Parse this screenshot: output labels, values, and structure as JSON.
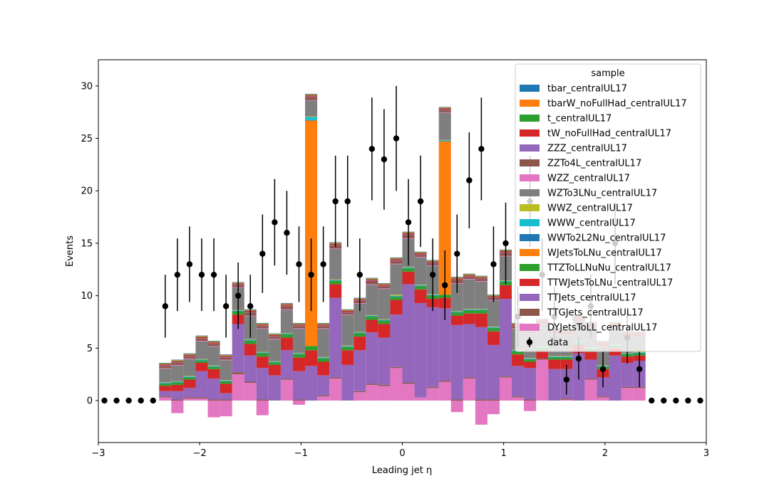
{
  "chart_data": {
    "type": "bar",
    "xlabel": "Leading jet  η",
    "ylabel": "Events",
    "xlim": [
      -3,
      3
    ],
    "ylim": [
      -4,
      32.5
    ],
    "xticks": [
      -3,
      -2,
      -1,
      0,
      1,
      2,
      3
    ],
    "xtick_labels": [
      "−3",
      "−2",
      "−1",
      "0",
      "1",
      "2",
      "3"
    ],
    "yticks": [
      0,
      5,
      10,
      15,
      20,
      25,
      30
    ],
    "ytick_labels": [
      "0",
      "5",
      "10",
      "15",
      "20",
      "25",
      "30"
    ],
    "bin_edges": [
      -3.0,
      -2.88,
      -2.76,
      -2.64,
      -2.52,
      -2.4,
      -2.28,
      -2.16,
      -2.04,
      -1.92,
      -1.8,
      -1.68,
      -1.56,
      -1.44,
      -1.32,
      -1.2,
      -1.08,
      -0.96,
      -0.84,
      -0.72,
      -0.6,
      -0.48,
      -0.36,
      -0.24,
      -0.12,
      0.0,
      0.12,
      0.24,
      0.36,
      0.48,
      0.6,
      0.72,
      0.84,
      0.96,
      1.08,
      1.2,
      1.32,
      1.44,
      1.56,
      1.68,
      1.8,
      1.92,
      2.04,
      2.16,
      2.28,
      2.4,
      2.52,
      2.64,
      2.76,
      2.88,
      3.0
    ],
    "legend_title": "sample",
    "legend_position": "upper right",
    "series": [
      {
        "name": "DYJetsToLL_centralUL17",
        "color": "#e377c2",
        "values": [
          0,
          0,
          0,
          0,
          0,
          0.3,
          -1.2,
          0.2,
          0.2,
          -1.6,
          -1.5,
          2.5,
          1.7,
          -1.4,
          0,
          2.0,
          -0.4,
          0,
          0.4,
          2.1,
          0,
          0.8,
          1.5,
          1.4,
          3.1,
          1.6,
          0.3,
          1.2,
          1.8,
          -1.1,
          2.1,
          -2.3,
          -1.3,
          2.2,
          0.3,
          -1.0,
          3.9,
          0,
          0.1,
          0,
          2.0,
          0.3,
          0,
          1.2,
          1.2,
          0,
          0,
          0,
          0,
          0
        ]
      },
      {
        "name": "TTGJets_centralUL17",
        "color": "#8c564b",
        "values": [
          0,
          0,
          0,
          0,
          0,
          0.1,
          0.1,
          0.1,
          0.1,
          0.1,
          0.1,
          0.2,
          0.1,
          0.1,
          0,
          0.1,
          0.1,
          0,
          0.1,
          0.1,
          0,
          0.1,
          0.1,
          0.1,
          0.1,
          0.1,
          0,
          0.1,
          0.1,
          0.1,
          0.1,
          0.1,
          0.1,
          0.1,
          0.1,
          0.1,
          0.1,
          0,
          0.1,
          0,
          0.1,
          0.1,
          0,
          0.1,
          0.1,
          0,
          0,
          0,
          0,
          0
        ]
      },
      {
        "name": "TTJets_centralUL17",
        "color": "#9467bd",
        "values": [
          0,
          0,
          0,
          0,
          0,
          0.5,
          0.8,
          0.9,
          2.5,
          2.0,
          0.6,
          4.6,
          2.5,
          3.0,
          2.4,
          2.7,
          2.7,
          3.3,
          1.9,
          7.6,
          3.4,
          3.9,
          4.9,
          4.5,
          5.0,
          9.4,
          9.0,
          7.6,
          6.9,
          7.1,
          5.1,
          6.9,
          5.2,
          7.4,
          2.9,
          3.0,
          0,
          3.0,
          2.8,
          4.5,
          1.8,
          1.8,
          4.3,
          2.3,
          2.5,
          0,
          0,
          0,
          0,
          0
        ]
      },
      {
        "name": "TTWJetsToLNu_centralUL17",
        "color": "#d62728",
        "values": [
          0,
          0,
          0,
          0,
          0,
          0.5,
          0.6,
          0.8,
          0.8,
          0.9,
          0.9,
          0.9,
          1.1,
          1.1,
          1.0,
          1.2,
          1.3,
          1.5,
          1.3,
          1.3,
          1.4,
          1.3,
          1.2,
          1.3,
          1.4,
          1.2,
          1.3,
          0.8,
          1.0,
          0.9,
          1.0,
          1.3,
          1.3,
          1.3,
          1.1,
          0.6,
          0.8,
          0.9,
          0.9,
          0.8,
          0.8,
          0.8,
          0.7,
          0.6,
          0.5,
          0,
          0,
          0,
          0,
          0
        ]
      },
      {
        "name": "TTZToLLNuNu_centralUL17",
        "color": "#2ca02c",
        "values": [
          0,
          0,
          0,
          0,
          0,
          0.2,
          0.2,
          0.2,
          0.2,
          0.2,
          0.2,
          0.3,
          0.3,
          0.3,
          0.2,
          0.3,
          0.3,
          0.4,
          0.3,
          0.3,
          0.3,
          0.3,
          0.3,
          0.3,
          0.3,
          0.3,
          0.3,
          0.3,
          0.3,
          0.3,
          0.3,
          0.3,
          0.3,
          0.3,
          0.3,
          0.2,
          0.2,
          0.2,
          0.2,
          0.2,
          0.2,
          0.2,
          0.2,
          0.2,
          0.2,
          0,
          0,
          0,
          0,
          0
        ]
      },
      {
        "name": "WJetsToLNu_centralUL17",
        "color": "#ff7f0e",
        "values": [
          0,
          0,
          0,
          0,
          0,
          0,
          0,
          0,
          0,
          0,
          0,
          0,
          0,
          0,
          0,
          0,
          0,
          21.5,
          0,
          0,
          0,
          0,
          0,
          0,
          0,
          0,
          0,
          0,
          14.6,
          0,
          0,
          0,
          0,
          0,
          0,
          0,
          0,
          0,
          0,
          0,
          0,
          0,
          0,
          0,
          0,
          0,
          0,
          0,
          0,
          0
        ]
      },
      {
        "name": "WWTo2L2Nu_centralUL17",
        "color": "#1f77b4",
        "values": [
          0,
          0,
          0,
          0,
          0,
          0.05,
          0.05,
          0.05,
          0.05,
          0.05,
          0.05,
          0.05,
          0.05,
          0.05,
          0.05,
          0.05,
          0.05,
          0.05,
          0.05,
          0.05,
          0.05,
          0.05,
          0.05,
          0.05,
          0.05,
          0.05,
          0.05,
          0.05,
          0.05,
          0.05,
          0.05,
          0.05,
          0.05,
          0.05,
          0.05,
          0.05,
          0.05,
          0.05,
          0.05,
          0.05,
          0.05,
          0.05,
          0.05,
          0.05,
          0.05,
          0,
          0,
          0,
          0,
          0
        ]
      },
      {
        "name": "WWW_centralUL17",
        "color": "#17becf",
        "values": [
          0,
          0,
          0,
          0,
          0,
          0.05,
          0.05,
          0.05,
          0.05,
          0.05,
          0.05,
          0.05,
          0.05,
          0.05,
          0.05,
          0.05,
          0.05,
          0.3,
          0.05,
          0.05,
          0.05,
          0.05,
          0.05,
          0.05,
          0.05,
          0.05,
          0.05,
          0.05,
          0.05,
          0.05,
          0.05,
          0.05,
          0.05,
          0.05,
          0.05,
          0.05,
          0.05,
          0.05,
          0.05,
          0.05,
          0.05,
          0.05,
          0.05,
          0.05,
          0.05,
          0,
          0,
          0,
          0,
          0
        ]
      },
      {
        "name": "WWZ_centralUL17",
        "color": "#bcbd22",
        "values": [
          0,
          0,
          0,
          0,
          0,
          0.05,
          0.05,
          0.05,
          0.05,
          0.05,
          0.05,
          0.05,
          0.05,
          0.05,
          0.05,
          0.05,
          0.05,
          0.05,
          0.05,
          0.05,
          0.05,
          0.05,
          0.05,
          0.05,
          0.1,
          0.05,
          0.05,
          0.05,
          0.05,
          0.05,
          0.05,
          0.05,
          0.05,
          0.05,
          0.05,
          0.05,
          0.05,
          0.05,
          0.05,
          0.05,
          0.05,
          0.05,
          0.05,
          0.05,
          0.05,
          0,
          0,
          0,
          0,
          0
        ]
      },
      {
        "name": "WZTo3LNu_centralUL17",
        "color": "#7f7f7f",
        "values": [
          0,
          0,
          0,
          0,
          0,
          1.3,
          1.5,
          1.6,
          1.7,
          1.8,
          1.9,
          2.1,
          2.2,
          2.2,
          2.1,
          2.2,
          2.3,
          1.5,
          2.7,
          2.9,
          2.9,
          2.7,
          2.9,
          2.9,
          2.9,
          2.7,
          2.6,
          2.7,
          2.6,
          2.6,
          2.8,
          2.6,
          2.5,
          2.3,
          2.0,
          2.3,
          2.1,
          2.1,
          2.0,
          1.9,
          1.9,
          1.8,
          1.6,
          1.5,
          1.4,
          0,
          0,
          0,
          0,
          0
        ]
      },
      {
        "name": "WZZ_centralUL17",
        "color": "#e377c2",
        "values": [
          0,
          0,
          0,
          0,
          0,
          0.05,
          0.05,
          0.05,
          0.05,
          0.05,
          0.05,
          0.05,
          0.05,
          0.05,
          0.05,
          0.05,
          0.05,
          0.05,
          0.05,
          0.05,
          0.05,
          0.05,
          0.05,
          0.05,
          0.05,
          0.05,
          0.05,
          0.05,
          0.05,
          0.05,
          0.05,
          0.05,
          0.05,
          0.05,
          0.05,
          0.05,
          0.05,
          0.05,
          0.05,
          0.05,
          0.05,
          0.05,
          0.05,
          0.05,
          0.05,
          0,
          0,
          0,
          0,
          0
        ]
      },
      {
        "name": "ZZTo4L_centralUL17",
        "color": "#8c564b",
        "values": [
          0,
          0,
          0,
          0,
          0,
          0.2,
          0.2,
          0.2,
          0.2,
          0.2,
          0.2,
          0.2,
          0.3,
          0.2,
          0.2,
          0.3,
          0.2,
          0.3,
          0.2,
          0.3,
          0.2,
          0.2,
          0.3,
          0.2,
          0.3,
          0.3,
          0.2,
          0.2,
          0.2,
          0.3,
          0.2,
          0.2,
          0.2,
          0.3,
          0.2,
          0.2,
          0.2,
          0.2,
          0.2,
          0.2,
          0.2,
          0.2,
          0.2,
          0.2,
          0.2,
          0,
          0,
          0,
          0,
          0
        ]
      },
      {
        "name": "ZZZ_centralUL17",
        "color": "#9467bd",
        "values": [
          0,
          0,
          0,
          0,
          0,
          0.05,
          0.05,
          0.05,
          0.05,
          0.05,
          0.05,
          0.05,
          0.05,
          0.05,
          0.05,
          0.05,
          0.05,
          0.05,
          0.05,
          0.05,
          0.05,
          0.05,
          0.05,
          0.05,
          0.05,
          0.05,
          0.05,
          0.05,
          0.05,
          0.05,
          0.05,
          0.05,
          0.05,
          0.05,
          0.05,
          0.05,
          0.05,
          0.05,
          0.05,
          0.05,
          0.05,
          0.05,
          0.05,
          0.05,
          0.05,
          0,
          0,
          0,
          0,
          0
        ]
      },
      {
        "name": "tW_noFullHad_centralUL17",
        "color": "#d62728",
        "values": [
          0,
          0,
          0,
          0,
          0,
          0.1,
          0.1,
          0.1,
          0.1,
          0.1,
          0.1,
          0.1,
          0.1,
          0.1,
          0.1,
          0.1,
          0.1,
          0.1,
          0.1,
          0.1,
          0.1,
          0.1,
          0.1,
          0.1,
          0.1,
          0.1,
          0.1,
          0.1,
          0.1,
          0.1,
          0.1,
          0.1,
          0.1,
          0.1,
          0.1,
          0.1,
          0.1,
          0.1,
          0.1,
          0.1,
          0.1,
          0.1,
          0.1,
          0.1,
          0.1,
          0,
          0,
          0,
          0,
          0
        ]
      },
      {
        "name": "t_centralUL17",
        "color": "#2ca02c",
        "values": [
          0,
          0,
          0,
          0,
          0,
          0.05,
          0.05,
          0.05,
          0.05,
          0.05,
          0.05,
          0.05,
          0.05,
          0.05,
          0.05,
          0.05,
          0.05,
          0.05,
          0.05,
          0.05,
          0.05,
          0.05,
          0.05,
          0.05,
          0.05,
          0.05,
          0.05,
          0.05,
          0.05,
          0.05,
          0.05,
          0.05,
          0.05,
          0.05,
          0.05,
          0.05,
          0.05,
          0.05,
          0.05,
          0.05,
          0.05,
          0.05,
          0.05,
          0.05,
          0.05,
          0,
          0,
          0,
          0,
          0
        ]
      },
      {
        "name": "tbarW_noFullHad_centralUL17",
        "color": "#ff7f0e",
        "values": [
          0,
          0,
          0,
          0,
          0,
          0.05,
          0.05,
          0.05,
          0.05,
          0.05,
          0.05,
          0.05,
          0.05,
          0.05,
          0.05,
          0.05,
          0.05,
          0.05,
          0.05,
          0.05,
          0.05,
          0.05,
          0.05,
          0.05,
          0.05,
          0.05,
          0.05,
          0.05,
          0.05,
          0.05,
          0.05,
          0.05,
          0.05,
          0.05,
          0.05,
          0.05,
          0.05,
          0.05,
          0.05,
          0.05,
          0.05,
          0.05,
          0.05,
          0.05,
          0.05,
          0,
          0,
          0,
          0,
          0
        ]
      },
      {
        "name": "tbar_centralUL17",
        "color": "#1f77b4",
        "values": [
          0,
          0,
          0,
          0,
          0,
          0.05,
          0.05,
          0.05,
          0.05,
          0.05,
          0.05,
          0.05,
          0.05,
          0.05,
          0.05,
          0.05,
          0.05,
          0.05,
          0.05,
          0.05,
          0.05,
          0.05,
          0.05,
          0.05,
          0.05,
          0.05,
          0.05,
          0.05,
          0.05,
          0.05,
          0.05,
          0.05,
          0.05,
          0.05,
          0.05,
          0.05,
          0.05,
          0.05,
          0.05,
          0.05,
          0.05,
          0.05,
          0.05,
          0.05,
          0.05,
          0,
          0,
          0,
          0,
          0
        ]
      }
    ],
    "data_series": {
      "name": "data",
      "x": [
        -2.94,
        -2.82,
        -2.7,
        -2.58,
        -2.46,
        -2.34,
        -2.22,
        -2.1,
        -1.98,
        -1.86,
        -1.74,
        -1.62,
        -1.5,
        -1.38,
        -1.26,
        -1.14,
        -1.02,
        -0.9,
        -0.78,
        -0.66,
        -0.54,
        -0.42,
        -0.3,
        -0.18,
        -0.06,
        0.06,
        0.18,
        0.3,
        0.42,
        0.54,
        0.66,
        0.78,
        0.9,
        1.02,
        1.14,
        1.26,
        1.38,
        1.5,
        1.62,
        1.74,
        1.86,
        1.98,
        2.1,
        2.22,
        2.34,
        2.46,
        2.58,
        2.7,
        2.82,
        2.94
      ],
      "y": [
        0,
        0,
        0,
        0,
        0,
        9,
        12,
        13,
        12,
        12,
        9,
        10,
        9,
        14,
        17,
        16,
        13,
        12,
        13,
        19,
        19,
        12,
        24,
        23,
        25,
        17,
        19,
        12,
        11,
        14,
        21,
        24,
        13,
        15,
        8,
        19,
        12,
        8,
        2,
        4,
        9,
        3,
        15,
        6,
        3,
        0,
        0,
        0,
        0,
        0
      ]
    }
  }
}
